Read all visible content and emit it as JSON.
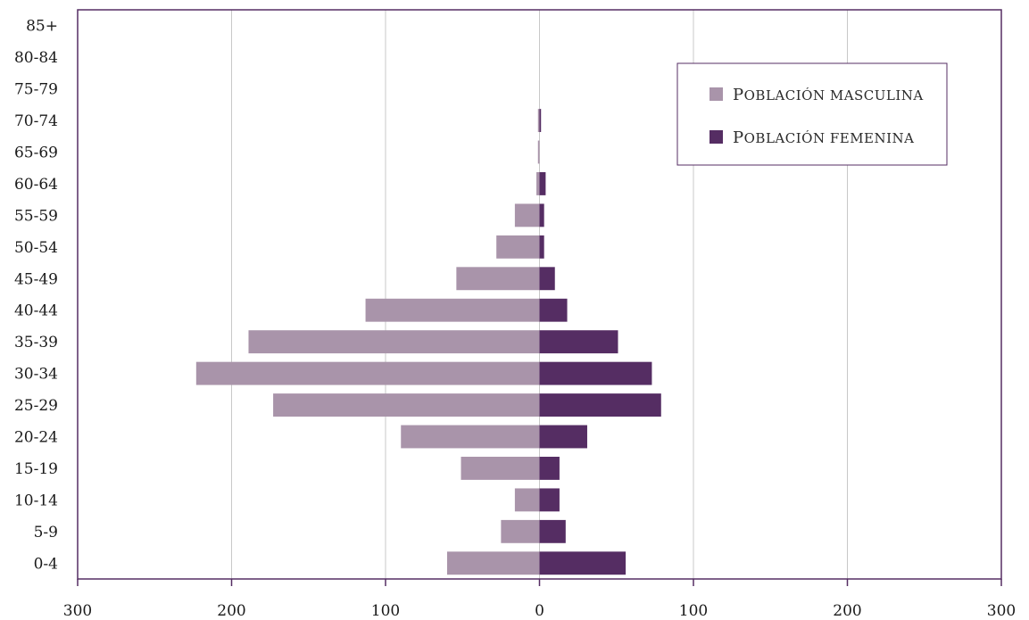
{
  "chart_data": {
    "type": "bar",
    "orientation": "horizontal",
    "layout": "population-pyramid",
    "categories": [
      "0-4",
      "5-9",
      "10-14",
      "15-19",
      "20-24",
      "25-29",
      "30-34",
      "35-39",
      "40-44",
      "45-49",
      "50-54",
      "55-59",
      "60-64",
      "65-69",
      "70-74",
      "75-79",
      "80-84",
      "85+"
    ],
    "series": [
      {
        "name": "Población masculina",
        "side": "left",
        "color": "#a994aa",
        "values": [
          60,
          25,
          16,
          51,
          90,
          173,
          223,
          189,
          113,
          54,
          28,
          16,
          2,
          1,
          1,
          0,
          0,
          0
        ]
      },
      {
        "name": "Población femenina",
        "side": "right",
        "color": "#552d63",
        "values": [
          56,
          17,
          13,
          13,
          31,
          79,
          73,
          51,
          18,
          10,
          3,
          3,
          4,
          0,
          1,
          0,
          0,
          0
        ]
      }
    ],
    "xlim": [
      -300,
      300
    ],
    "xticks": [
      -300,
      -200,
      -100,
      0,
      100,
      200,
      300
    ],
    "xtick_labels": [
      "300",
      "200",
      "100",
      "0",
      "100",
      "200",
      "300"
    ],
    "grid": "vertical",
    "legend_position": "top-right",
    "title": "",
    "xlabel": "",
    "ylabel": "",
    "frame_color": "#552d63",
    "grid_color": "#c8c8c8"
  }
}
